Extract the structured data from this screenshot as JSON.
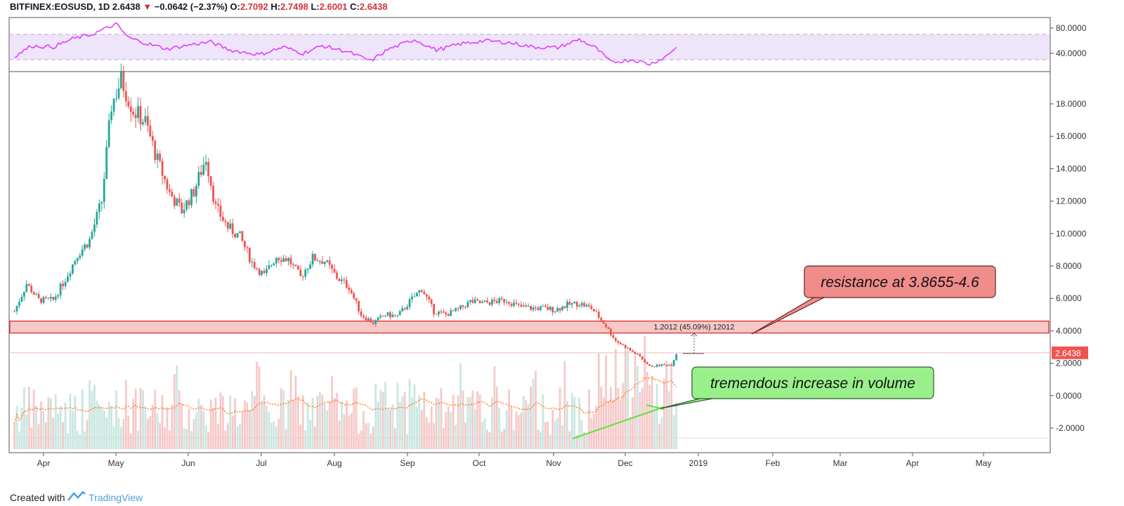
{
  "header": {
    "symbol": "BITFINEX:EOSUSD, 1D",
    "last": "2.6438",
    "arrow": "▼",
    "change": "−0.0642 (−2.37%)",
    "o_label": "O:",
    "o": "2.7092",
    "h_label": "H:",
    "h": "2.7498",
    "l_label": "L:",
    "l": "2.6001",
    "c_label": "C:",
    "c": "2.6438"
  },
  "footer": {
    "prefix": "Created with",
    "brand": "TradingView"
  },
  "chart_data": {
    "type": "candlestick",
    "instrument": "BITFINEX:EOSUSD",
    "interval": "1D",
    "x_labels": [
      "Apr",
      "May",
      "Jun",
      "Jul",
      "Aug",
      "Sep",
      "Oct",
      "Nov",
      "Dec",
      "2019",
      "Feb",
      "Mar",
      "Apr",
      "May"
    ],
    "price_axis": {
      "ticks": [
        "18.0000",
        "16.0000",
        "14.0000",
        "12.0000",
        "10.0000",
        "8.0000",
        "6.0000",
        "4.0000",
        "2.0000",
        "0.0000",
        "-2.0000"
      ],
      "ylim": [
        -3.5,
        20
      ]
    },
    "rsi_axis": {
      "ticks": [
        "80.0000",
        "40.0000"
      ],
      "ylim": [
        15,
        90
      ],
      "band": [
        30,
        70
      ]
    },
    "last_price_label": "2.6438",
    "price_path": [
      {
        "date": "2018-03-20",
        "close": 5.2
      },
      {
        "date": "2018-03-25",
        "close": 6.9
      },
      {
        "date": "2018-03-30",
        "close": 5.9
      },
      {
        "date": "2018-04-05",
        "close": 5.9
      },
      {
        "date": "2018-04-10",
        "close": 7.2
      },
      {
        "date": "2018-04-15",
        "close": 8.7
      },
      {
        "date": "2018-04-20",
        "close": 9.6
      },
      {
        "date": "2018-04-25",
        "close": 12.0
      },
      {
        "date": "2018-04-29",
        "close": 17.9
      },
      {
        "date": "2018-05-03",
        "close": 19.5
      },
      {
        "date": "2018-05-08",
        "close": 17.6
      },
      {
        "date": "2018-05-13",
        "close": 16.9
      },
      {
        "date": "2018-05-18",
        "close": 14.5
      },
      {
        "date": "2018-05-23",
        "close": 12.5
      },
      {
        "date": "2018-05-28",
        "close": 11.4
      },
      {
        "date": "2018-06-02",
        "close": 12.6
      },
      {
        "date": "2018-06-07",
        "close": 14.7
      },
      {
        "date": "2018-06-11",
        "close": 11.6
      },
      {
        "date": "2018-06-16",
        "close": 10.4
      },
      {
        "date": "2018-06-21",
        "close": 9.8
      },
      {
        "date": "2018-06-26",
        "close": 8.2
      },
      {
        "date": "2018-07-01",
        "close": 7.4
      },
      {
        "date": "2018-07-06",
        "close": 8.6
      },
      {
        "date": "2018-07-11",
        "close": 8.4
      },
      {
        "date": "2018-07-16",
        "close": 7.3
      },
      {
        "date": "2018-07-21",
        "close": 8.5
      },
      {
        "date": "2018-07-26",
        "close": 8.3
      },
      {
        "date": "2018-07-31",
        "close": 7.3
      },
      {
        "date": "2018-08-05",
        "close": 6.7
      },
      {
        "date": "2018-08-10",
        "close": 5.0
      },
      {
        "date": "2018-08-15",
        "close": 4.5
      },
      {
        "date": "2018-08-20",
        "close": 5.0
      },
      {
        "date": "2018-08-25",
        "close": 4.9
      },
      {
        "date": "2018-08-30",
        "close": 5.8
      },
      {
        "date": "2018-09-04",
        "close": 6.6
      },
      {
        "date": "2018-09-09",
        "close": 5.2
      },
      {
        "date": "2018-09-14",
        "close": 5.0
      },
      {
        "date": "2018-09-19",
        "close": 5.3
      },
      {
        "date": "2018-09-24",
        "close": 5.8
      },
      {
        "date": "2018-09-29",
        "close": 5.7
      },
      {
        "date": "2018-10-04",
        "close": 5.8
      },
      {
        "date": "2018-10-09",
        "close": 5.9
      },
      {
        "date": "2018-10-14",
        "close": 5.5
      },
      {
        "date": "2018-10-19",
        "close": 5.4
      },
      {
        "date": "2018-10-24",
        "close": 5.4
      },
      {
        "date": "2018-10-29",
        "close": 5.3
      },
      {
        "date": "2018-11-03",
        "close": 5.6
      },
      {
        "date": "2018-11-08",
        "close": 5.7
      },
      {
        "date": "2018-11-13",
        "close": 5.4
      },
      {
        "date": "2018-11-18",
        "close": 4.5
      },
      {
        "date": "2018-11-23",
        "close": 3.4
      },
      {
        "date": "2018-11-28",
        "close": 2.9
      },
      {
        "date": "2018-12-03",
        "close": 2.4
      },
      {
        "date": "2018-12-07",
        "close": 1.8
      },
      {
        "date": "2018-12-12",
        "close": 1.9
      },
      {
        "date": "2018-12-16",
        "close": 1.9
      },
      {
        "date": "2018-12-18",
        "close": 2.6
      }
    ],
    "rsi_path": [
      {
        "date": "2018-03-20",
        "rsi": 35
      },
      {
        "date": "2018-03-27",
        "rsi": 52
      },
      {
        "date": "2018-04-05",
        "rsi": 50
      },
      {
        "date": "2018-04-13",
        "rsi": 63
      },
      {
        "date": "2018-04-21",
        "rsi": 70
      },
      {
        "date": "2018-04-27",
        "rsi": 80
      },
      {
        "date": "2018-05-01",
        "rsi": 86
      },
      {
        "date": "2018-05-06",
        "rsi": 65
      },
      {
        "date": "2018-05-14",
        "rsi": 55
      },
      {
        "date": "2018-05-22",
        "rsi": 47
      },
      {
        "date": "2018-06-01",
        "rsi": 54
      },
      {
        "date": "2018-06-09",
        "rsi": 58
      },
      {
        "date": "2018-06-17",
        "rsi": 45
      },
      {
        "date": "2018-06-29",
        "rsi": 38
      },
      {
        "date": "2018-07-09",
        "rsi": 50
      },
      {
        "date": "2018-07-17",
        "rsi": 40
      },
      {
        "date": "2018-07-25",
        "rsi": 52
      },
      {
        "date": "2018-08-04",
        "rsi": 43
      },
      {
        "date": "2018-08-14",
        "rsi": 28
      },
      {
        "date": "2018-08-21",
        "rsi": 46
      },
      {
        "date": "2018-09-01",
        "rsi": 62
      },
      {
        "date": "2018-09-10",
        "rsi": 45
      },
      {
        "date": "2018-09-20",
        "rsi": 55
      },
      {
        "date": "2018-09-30",
        "rsi": 60
      },
      {
        "date": "2018-10-10",
        "rsi": 57
      },
      {
        "date": "2018-10-20",
        "rsi": 50
      },
      {
        "date": "2018-10-30",
        "rsi": 49
      },
      {
        "date": "2018-11-08",
        "rsi": 62
      },
      {
        "date": "2018-11-15",
        "rsi": 48
      },
      {
        "date": "2018-11-21",
        "rsi": 26
      },
      {
        "date": "2018-11-30",
        "rsi": 30
      },
      {
        "date": "2018-12-07",
        "rsi": 23
      },
      {
        "date": "2018-12-13",
        "rsi": 33
      },
      {
        "date": "2018-12-18",
        "rsi": 50
      }
    ],
    "resistance_zone": {
      "low": 3.8655,
      "high": 4.6
    },
    "measure_label": "1.2012 (45.09%) 12012",
    "annotations": [
      {
        "text": "resistance at 3.8655-4.6",
        "fill": "#f08c8c",
        "stroke": "#6b2020"
      },
      {
        "text": "tremendous increase in volume",
        "fill": "#99f08a",
        "stroke": "#2f5a2f"
      }
    ],
    "colors": {
      "up": "#26a69a",
      "down": "#ef5350",
      "rsi_line": "#e040fb",
      "rsi_band_fill": "#efe5fb",
      "resistance_fill": "#f8c8c8",
      "resistance_stroke": "#e04040",
      "volume_ma": "#ff7f27",
      "volume_trend": "#5fe33e",
      "last_price_bg": "#ef5350"
    }
  }
}
